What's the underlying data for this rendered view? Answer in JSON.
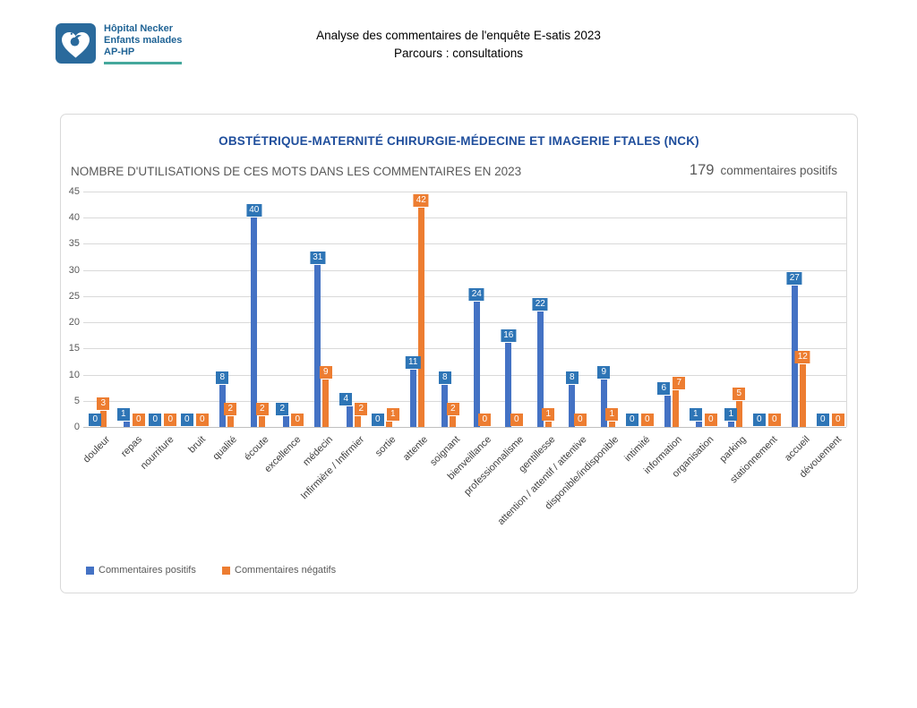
{
  "header": {
    "logo": {
      "line1": "Hôpital Necker",
      "line2": "Enfants malades",
      "line3": "AP-HP"
    },
    "title_line1": "Analyse des commentaires de l'enquête E-satis 2023",
    "title_line2": "Parcours : consultations"
  },
  "chart_data": {
    "type": "bar",
    "title": "OBSTÉTRIQUE-MATERNITÉ CHIRURGIE-MÉDECINE ET IMAGERIE FTALES (NCK)",
    "subtitle": "NOMBRE D'UTILISATIONS DE CES MOTS DANS LES COMMENTAIRES EN 2023",
    "annotation_value": "179",
    "annotation_label": "commentaires positifs",
    "categories": [
      "douleur",
      "repas",
      "nourriture",
      "bruit",
      "qualité",
      "écoute",
      "excellence",
      "médecin",
      "Infirmière / Infirmier",
      "sortie",
      "attente",
      "soignant",
      "bienveillance",
      "professionnalisme",
      "gentillesse",
      "attention / attentif / attentive",
      "disponible/indisponible",
      "intimité",
      "information",
      "organisation",
      "parking",
      "stationnement",
      "accueil",
      "dévouement"
    ],
    "series": [
      {
        "name": "Commentaires positifs",
        "color": "#4472C4",
        "label_color": "#2E75B6",
        "values": [
          0,
          1,
          0,
          0,
          8,
          40,
          2,
          31,
          4,
          0,
          11,
          8,
          24,
          16,
          22,
          8,
          9,
          0,
          6,
          1,
          1,
          0,
          27,
          0
        ]
      },
      {
        "name": "Commentaires négatifs",
        "color": "#ED7D31",
        "label_color": "#ED7D31",
        "values": [
          3,
          0,
          0,
          0,
          2,
          2,
          0,
          9,
          2,
          1,
          42,
          2,
          0,
          0,
          1,
          0,
          1,
          0,
          7,
          0,
          5,
          0,
          12,
          0
        ]
      }
    ],
    "ylim": [
      0,
      45
    ],
    "ytick_step": 5,
    "grid": true,
    "legend_position": "bottom-left",
    "colors": {
      "title": "#1F4E9C",
      "axis_text": "#595959",
      "grid": "#D9D9D9",
      "axis_line": "#BFBFBF",
      "category_text": "#404040"
    }
  }
}
